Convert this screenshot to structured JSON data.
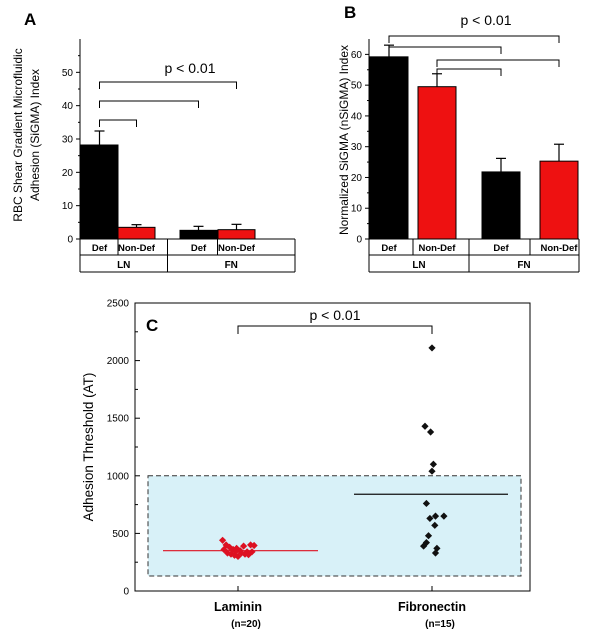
{
  "chart_data": [
    {
      "panel": "A",
      "type": "bar",
      "ylabel": "RBC Shear Gradient Microfluidic Adhesion (SiGMA)  Index",
      "ylim": [
        0,
        60
      ],
      "yticks": [
        0,
        10,
        20,
        30,
        40,
        50
      ],
      "categories": [
        "Def",
        "Non-Def",
        "Def",
        "Non-Def"
      ],
      "groups": [
        "LN",
        "FN"
      ],
      "values": [
        28.2,
        3.5,
        2.6,
        2.8
      ],
      "errors": [
        4.2,
        0.8,
        1.2,
        1.6
      ],
      "colors": [
        "#000000",
        "#ee1111",
        "#000000",
        "#ee1111"
      ],
      "pvalue": "p < 0.01"
    },
    {
      "panel": "B",
      "type": "bar",
      "ylabel": "Normalized SiGMA (nSiGMA) Index",
      "ylim": [
        0,
        65
      ],
      "yticks": [
        0,
        10,
        20,
        30,
        40,
        50,
        60
      ],
      "categories": [
        "Def",
        "Non-Def",
        "Def",
        "Non-Def"
      ],
      "groups": [
        "LN",
        "FN"
      ],
      "values": [
        59.2,
        49.5,
        21.8,
        25.3
      ],
      "errors": [
        3.8,
        4.2,
        4.4,
        5.5
      ],
      "colors": [
        "#000000",
        "#ee1111",
        "#000000",
        "#ee1111"
      ],
      "pvalue": "p < 0.01"
    },
    {
      "panel": "C",
      "type": "scatter",
      "ylabel": "Adhesion Threshold (AT)",
      "ylim": [
        0,
        2500
      ],
      "yticks": [
        0,
        500,
        1000,
        1500,
        2000,
        2500
      ],
      "categories": [
        "Laminin",
        "Fibronectin"
      ],
      "counts": [
        "(n=20)",
        "(n=15)"
      ],
      "pvalue": "p < 0.01",
      "shaded_range": [
        130,
        1000
      ],
      "series": [
        {
          "name": "Laminin",
          "color": "#dd1122",
          "mean": 350,
          "points": [
            {
              "x": -0.22,
              "y": 440
            },
            {
              "x": -0.17,
              "y": 400
            },
            {
              "x": -0.12,
              "y": 380
            },
            {
              "x": -0.07,
              "y": 360
            },
            {
              "x": -0.02,
              "y": 370
            },
            {
              "x": 0.03,
              "y": 350
            },
            {
              "x": 0.08,
              "y": 390
            },
            {
              "x": 0.13,
              "y": 340
            },
            {
              "x": 0.18,
              "y": 400
            },
            {
              "x": 0.23,
              "y": 395
            },
            {
              "x": -0.15,
              "y": 330
            },
            {
              "x": -0.1,
              "y": 320
            },
            {
              "x": -0.05,
              "y": 310
            },
            {
              "x": 0.0,
              "y": 300
            },
            {
              "x": 0.05,
              "y": 330
            },
            {
              "x": 0.1,
              "y": 320
            },
            {
              "x": 0.15,
              "y": 315
            },
            {
              "x": -0.2,
              "y": 360
            },
            {
              "x": 0.2,
              "y": 340
            },
            {
              "x": -0.03,
              "y": 345
            }
          ]
        },
        {
          "name": "Fibronectin",
          "color": "#111111",
          "mean": 840,
          "points": [
            {
              "x": 0.0,
              "y": 2110
            },
            {
              "x": -0.1,
              "y": 1430
            },
            {
              "x": -0.02,
              "y": 1380
            },
            {
              "x": 0.02,
              "y": 1100
            },
            {
              "x": 0.0,
              "y": 1040
            },
            {
              "x": -0.08,
              "y": 760
            },
            {
              "x": -0.03,
              "y": 630
            },
            {
              "x": 0.05,
              "y": 650
            },
            {
              "x": 0.17,
              "y": 650
            },
            {
              "x": 0.04,
              "y": 570
            },
            {
              "x": -0.05,
              "y": 480
            },
            {
              "x": -0.08,
              "y": 420
            },
            {
              "x": -0.12,
              "y": 390
            },
            {
              "x": 0.07,
              "y": 370
            },
            {
              "x": 0.05,
              "y": 330
            }
          ]
        }
      ]
    }
  ]
}
